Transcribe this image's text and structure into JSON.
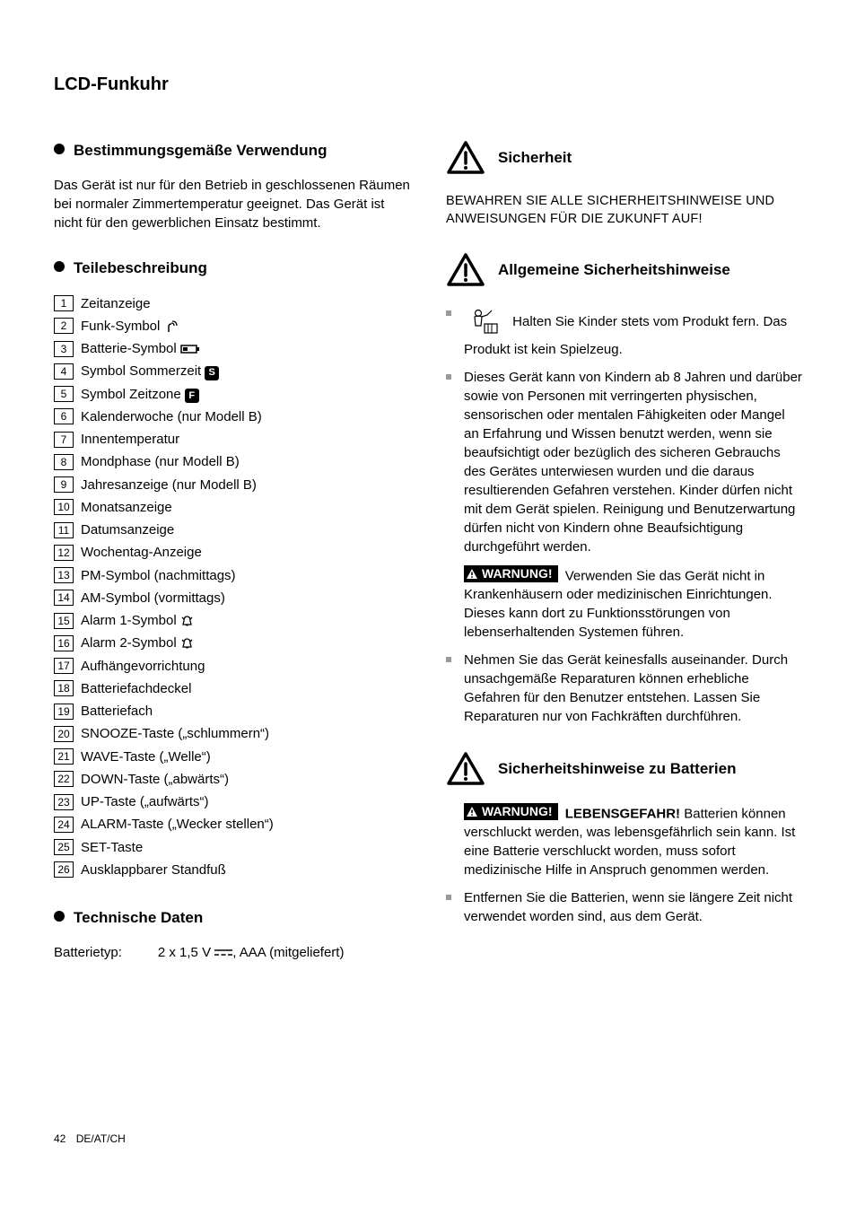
{
  "page_title": "LCD-Funkuhr",
  "left": {
    "h1": "Bestimmungsgemäße Verwendung",
    "p1": "Das Gerät ist nur für den Betrieb in geschlossenen Räumen bei normaler Zimmertemperatur geeignet. Das Gerät ist nicht für den gewerblichen Einsatz bestimmt.",
    "h2": "Teilebeschreibung",
    "parts": [
      {
        "n": "1",
        "t": "Zeitanzeige"
      },
      {
        "n": "2",
        "t": "Funk-Symbol",
        "icon": "radio"
      },
      {
        "n": "3",
        "t": "Batterie-Symbol",
        "icon": "battery"
      },
      {
        "n": "4",
        "t": "Symbol Sommerzeit",
        "icon": "s"
      },
      {
        "n": "5",
        "t": "Symbol Zeitzone",
        "icon": "f"
      },
      {
        "n": "6",
        "t": "Kalenderwoche (nur Modell B)"
      },
      {
        "n": "7",
        "t": "Innentemperatur"
      },
      {
        "n": "8",
        "t": "Mondphase (nur Modell B)"
      },
      {
        "n": "9",
        "t": "Jahresanzeige (nur Modell B)"
      },
      {
        "n": "10",
        "t": "Monatsanzeige"
      },
      {
        "n": "11",
        "t": "Datumsanzeige"
      },
      {
        "n": "12",
        "t": "Wochentag-Anzeige"
      },
      {
        "n": "13",
        "t": "PM-Symbol (nachmittags)"
      },
      {
        "n": "14",
        "t": "AM-Symbol (vormittags)"
      },
      {
        "n": "15",
        "t": "Alarm 1-Symbol",
        "icon": "bell"
      },
      {
        "n": "16",
        "t": "Alarm 2-Symbol",
        "icon": "bell"
      },
      {
        "n": "17",
        "t": "Aufhängevorrichtung"
      },
      {
        "n": "18",
        "t": "Batteriefachdeckel"
      },
      {
        "n": "19",
        "t": "Batteriefach"
      },
      {
        "n": "20",
        "t": "SNOOZE-Taste („schlummern“)"
      },
      {
        "n": "21",
        "t": "WAVE-Taste („Welle“)"
      },
      {
        "n": "22",
        "t": "DOWN-Taste („abwärts“)"
      },
      {
        "n": "23",
        "t": "UP-Taste („aufwärts“)"
      },
      {
        "n": "24",
        "t": "ALARM-Taste („Wecker stellen“)"
      },
      {
        "n": "25",
        "t": "SET-Taste"
      },
      {
        "n": "26",
        "t": "Ausklappbarer Standfuß"
      }
    ],
    "h3": "Technische Daten",
    "tech_label": "Batterietyp:",
    "tech_value_a": "2 x 1,5 V",
    "tech_value_b": ", AAA (mitgeliefert)"
  },
  "right": {
    "h1": "Sicherheit",
    "upper": "BEWAHREN SIE ALLE SICHERHEITSHINWEISE UND ANWEISUNGEN FÜR DIE ZUKUNFT AUF!",
    "h2": "Allgemeine Sicherheitshinweise",
    "b1": "Halten Sie Kinder stets vom Produkt fern. Das Produkt ist kein Spielzeug.",
    "b2": "Dieses Gerät kann von Kindern ab 8 Jahren und darüber sowie von Personen mit verringerten physischen, sensorischen oder mentalen Fähigkeiten oder Mangel an Erfahrung und Wissen benutzt werden, wenn sie beaufsichtigt oder bezüglich des sicheren Gebrauchs des Gerätes unterwiesen wurden und die daraus resultierenden Gefahren verstehen. Kinder dürfen nicht mit dem Gerät spielen. Reinigung und Benutzerwartung dürfen nicht von Kindern ohne Beaufsichtigung durchgeführt werden.",
    "warn1": "WARNUNG!",
    "b3": " Verwenden Sie das Gerät nicht in Krankenhäusern oder medizinischen Einrichtungen. Dieses kann dort zu Funktionsstörungen von lebenserhaltenden Systemen führen.",
    "b4": "Nehmen Sie das Gerät keinesfalls auseinander. Durch unsachgemäße Reparaturen können erhebliche Gefahren für den Benutzer entstehen. Lassen Sie Reparaturen nur von Fachkräften durchführen.",
    "h3": "Sicherheitshinweise zu Batterien",
    "warn2": "WARNUNG!",
    "warn2b": " LEBENSGEFAHR!",
    "b5": " Batterien können verschluckt werden, was lebensgefährlich sein kann. Ist eine Batterie verschluckt worden, muss sofort medizinische Hilfe in Anspruch genommen werden.",
    "b6": "Entfernen Sie die Batterien, wenn sie längere Zeit nicht verwendet worden sind, aus dem Gerät."
  },
  "footer_page": "42",
  "footer_loc": "DE/AT/CH"
}
